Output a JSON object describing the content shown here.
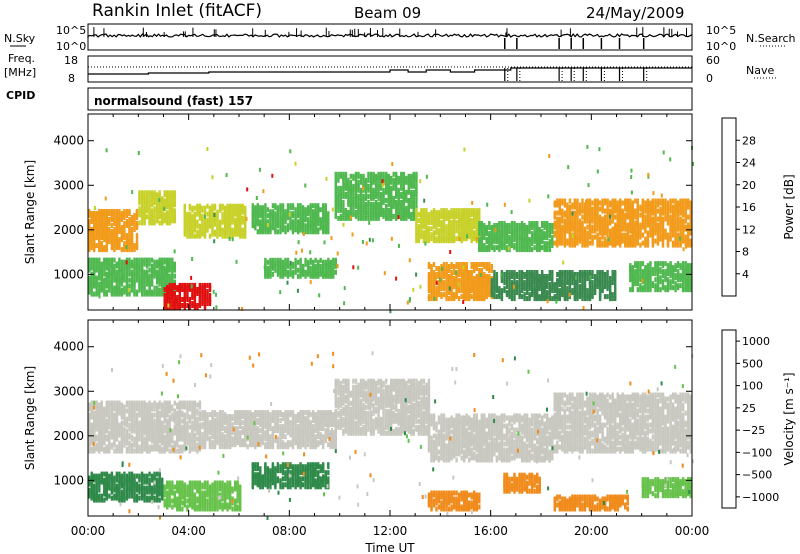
{
  "header": {
    "station": "Rankin Inlet (fitACF)",
    "beam": "Beam 09",
    "date": "24/May/2009"
  },
  "params": {
    "nsky_label": "N.Sky",
    "nsearch_label": "N.Search",
    "freq_label_top": "Freq.",
    "freq_label_unit": "[MHz]",
    "nave_label": "Nave",
    "cpid_label": "CPID",
    "cpid_text": "normalsound (fast) 157",
    "nsky_ticks": [
      "10^5",
      "10^0"
    ],
    "freq_ticks": [
      "18",
      "8"
    ],
    "nave_ticks": [
      "60",
      "0"
    ]
  },
  "chart_data": [
    {
      "type": "heatmap",
      "name": "power",
      "ylabel": "Slant Range [km]",
      "xlabel": "",
      "yticks": [
        1000,
        2000,
        3000,
        4000
      ],
      "ylim": [
        200,
        4600
      ],
      "xlim": [
        0,
        24
      ],
      "colorbar_label": "Power [dB]",
      "colorbar_ticks": [
        4,
        8,
        12,
        16,
        20,
        24,
        28
      ],
      "colorbar_range": [
        0,
        32
      ],
      "colors": [
        "#1a33ff",
        "#2a4fb0",
        "#3a8a50",
        "#4fb84f",
        "#c8d12a",
        "#f29a1a",
        "#f04a10",
        "#e01010"
      ],
      "bands": [
        {
          "t0": 0.0,
          "t1": 2.0,
          "r0": 1500,
          "r1": 2400,
          "v": 20
        },
        {
          "t0": 2.0,
          "t1": 3.5,
          "r0": 2100,
          "r1": 2800,
          "v": 16
        },
        {
          "t0": 3.8,
          "t1": 6.2,
          "r0": 1800,
          "r1": 2500,
          "v": 18
        },
        {
          "t0": 6.5,
          "t1": 9.5,
          "r0": 1900,
          "r1": 2500,
          "v": 14
        },
        {
          "t0": 9.8,
          "t1": 13.0,
          "r0": 2200,
          "r1": 3200,
          "v": 14
        },
        {
          "t0": 13.0,
          "t1": 15.5,
          "r0": 1700,
          "r1": 2400,
          "v": 16
        },
        {
          "t0": 15.5,
          "t1": 18.5,
          "r0": 1500,
          "r1": 2100,
          "v": 14
        },
        {
          "t0": 18.5,
          "t1": 24.0,
          "r0": 1600,
          "r1": 2600,
          "v": 20
        },
        {
          "t0": 0.0,
          "t1": 3.5,
          "r0": 500,
          "r1": 1300,
          "v": 12
        },
        {
          "t0": 3.0,
          "t1": 4.8,
          "r0": 200,
          "r1": 700,
          "v": 30
        },
        {
          "t0": 7.0,
          "t1": 9.8,
          "r0": 900,
          "r1": 1300,
          "v": 12
        },
        {
          "t0": 13.5,
          "t1": 16.0,
          "r0": 400,
          "r1": 1200,
          "v": 20
        },
        {
          "t0": 16.0,
          "t1": 21.0,
          "r0": 400,
          "r1": 1000,
          "v": 10
        },
        {
          "t0": 21.5,
          "t1": 24.0,
          "r0": 600,
          "r1": 1200,
          "v": 12
        }
      ]
    },
    {
      "type": "heatmap",
      "name": "velocity",
      "ylabel": "Slant Range [km]",
      "xlabel": "Time UT",
      "xticks": [
        "00:00",
        "04:00",
        "08:00",
        "12:00",
        "16:00",
        "20:00",
        "00:00"
      ],
      "yticks": [
        1000,
        2000,
        3000,
        4000
      ],
      "ylim": [
        200,
        4600
      ],
      "xlim": [
        0,
        24
      ],
      "colorbar_label": "Velocity [m s⁻¹]",
      "colorbar_ticks": [
        "1000",
        "500",
        "100",
        "25",
        "−25",
        "−100",
        "−500",
        "−1000"
      ],
      "colors": [
        "#2a3fd6",
        "#2a7a90",
        "#2f8a4a",
        "#66c24a",
        "#c8c8c0",
        "#f6b46a",
        "#f08a1a",
        "#e02010"
      ],
      "bands": [
        {
          "t0": 0.0,
          "t1": 4.5,
          "r0": 1600,
          "r1": 2700,
          "v": 4
        },
        {
          "t0": 4.5,
          "t1": 9.8,
          "r0": 1700,
          "r1": 2500,
          "v": 4
        },
        {
          "t0": 9.8,
          "t1": 13.5,
          "r0": 2000,
          "r1": 3200,
          "v": 4
        },
        {
          "t0": 13.5,
          "t1": 18.5,
          "r0": 1400,
          "r1": 2400,
          "v": 4
        },
        {
          "t0": 18.5,
          "t1": 24.0,
          "r0": 1600,
          "r1": 2900,
          "v": 4
        },
        {
          "t0": 0.0,
          "t1": 3.0,
          "r0": 500,
          "r1": 1100,
          "v": 2
        },
        {
          "t0": 3.0,
          "t1": 6.0,
          "r0": 300,
          "r1": 900,
          "v": 3
        },
        {
          "t0": 6.5,
          "t1": 9.5,
          "r0": 800,
          "r1": 1300,
          "v": 2
        },
        {
          "t0": 13.5,
          "t1": 15.5,
          "r0": 300,
          "r1": 700,
          "v": 6
        },
        {
          "t0": 16.5,
          "t1": 18.0,
          "r0": 700,
          "r1": 1100,
          "v": 6
        },
        {
          "t0": 18.5,
          "t1": 21.5,
          "r0": 300,
          "r1": 600,
          "v": 6
        },
        {
          "t0": 22.0,
          "t1": 24.0,
          "r0": 600,
          "r1": 1000,
          "v": 3
        }
      ]
    }
  ]
}
